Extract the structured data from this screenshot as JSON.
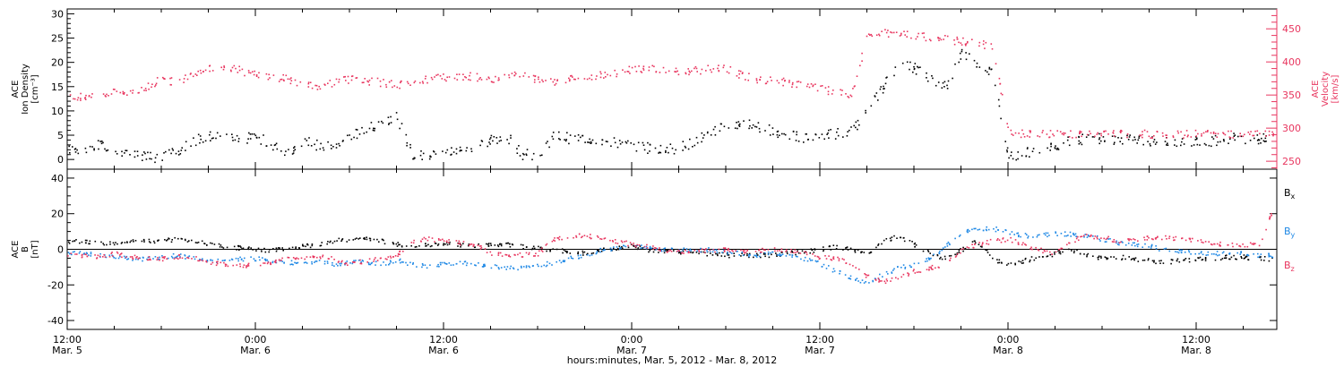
{
  "figure": {
    "xlabel": "hours:minutes, Mar.  5, 2012 - Mar.  8, 2012",
    "x_ticks": [
      {
        "time": "12:00",
        "date": "Mar. 5"
      },
      {
        "time": "0:00",
        "date": "Mar. 6"
      },
      {
        "time": "12:00",
        "date": "Mar. 6"
      },
      {
        "time": "0:00",
        "date": "Mar. 7"
      },
      {
        "time": "12:00",
        "date": "Mar. 7"
      },
      {
        "time": "0:00",
        "date": "Mar. 8"
      },
      {
        "time": "12:00",
        "date": "Mar. 8"
      }
    ],
    "colors": {
      "black": "#000000",
      "pink": "#e8365f",
      "blue": "#1e88e5"
    }
  },
  "chart_data": [
    {
      "type": "scatter",
      "panel": "ion-density-velocity",
      "xlim_hours": [
        0,
        78
      ],
      "ylabel_lines": [
        "ACE",
        "Ion Density",
        "[cm⁻³]"
      ],
      "ylim": [
        -2,
        31
      ],
      "yticks": [
        0,
        5,
        10,
        15,
        20,
        25,
        30
      ],
      "y2label_lines": [
        "ACE",
        "Velocity",
        "[km/s]"
      ],
      "y2lim": [
        238,
        480
      ],
      "y2ticks": [
        250,
        300,
        350,
        400,
        450
      ],
      "series": [
        {
          "color": "#000000",
          "axis": "left",
          "x": [
            0,
            1,
            2,
            3,
            4,
            5,
            6,
            7,
            8,
            9,
            10,
            11,
            12,
            13,
            14,
            15,
            16,
            17,
            18,
            19,
            20,
            21,
            22,
            23,
            24,
            25,
            26,
            27,
            28,
            29,
            30,
            31,
            32,
            33,
            34,
            35,
            36,
            37,
            38,
            39,
            40,
            41,
            42,
            43,
            44,
            45,
            46,
            47,
            48,
            49,
            50,
            51,
            52,
            53,
            54,
            55,
            56,
            57,
            58,
            59,
            60,
            61,
            62,
            63,
            64,
            65,
            66,
            67,
            68,
            69,
            70,
            71,
            72,
            73,
            74,
            75,
            76,
            77
          ],
          "y": [
            2,
            2.5,
            3,
            2,
            1.5,
            0.5,
            0.7,
            2,
            4,
            5,
            4.5,
            4,
            5,
            3,
            1.5,
            4,
            3,
            2.5,
            5,
            6,
            8,
            9,
            0.8,
            1,
            1.5,
            2,
            3,
            4,
            5,
            1.2,
            0.8,
            5,
            4.5,
            4.5,
            4,
            3.5,
            3,
            2.5,
            2.3,
            2.5,
            4,
            5.5,
            7,
            7.5,
            7,
            6,
            5,
            4.5,
            5,
            5.5,
            6,
            10,
            15,
            20,
            19,
            17,
            15,
            22,
            20,
            18,
            0.8,
            1.5,
            2,
            3,
            4,
            4.5,
            4.5,
            4.3,
            4,
            4,
            3.8,
            3.8,
            3.8,
            4,
            4.5,
            4.5,
            4.5,
            4.5
          ]
        },
        {
          "color": "#e8365f",
          "axis": "right",
          "x": [
            0,
            1,
            2,
            3,
            4,
            5,
            6,
            7,
            8,
            9,
            10,
            11,
            12,
            13,
            14,
            15,
            16,
            17,
            18,
            19,
            20,
            21,
            22,
            23,
            24,
            25,
            26,
            27,
            28,
            29,
            30,
            31,
            32,
            33,
            34,
            35,
            36,
            37,
            38,
            39,
            40,
            41,
            42,
            43,
            44,
            45,
            46,
            47,
            48,
            49,
            50,
            51,
            52,
            53,
            54,
            55,
            56,
            57,
            58,
            59,
            60,
            61,
            62,
            63,
            64,
            65,
            66,
            67,
            68,
            69,
            70,
            71,
            72,
            73,
            74,
            75,
            76,
            77
          ],
          "y": [
            345,
            348,
            350,
            358,
            352,
            362,
            375,
            370,
            385,
            392,
            395,
            388,
            382,
            378,
            375,
            368,
            365,
            370,
            375,
            372,
            370,
            365,
            372,
            375,
            378,
            380,
            378,
            375,
            380,
            380,
            375,
            372,
            375,
            378,
            382,
            385,
            390,
            392,
            388,
            385,
            388,
            390,
            392,
            380,
            375,
            372,
            370,
            365,
            360,
            355,
            350,
            440,
            445,
            443,
            440,
            438,
            435,
            432,
            428,
            425,
            295,
            292,
            292,
            292,
            292,
            292,
            292,
            292,
            292,
            292,
            292,
            292,
            292,
            292,
            292,
            292,
            292,
            292
          ]
        }
      ]
    },
    {
      "type": "scatter",
      "panel": "imf-components",
      "xlim_hours": [
        0,
        78
      ],
      "ylabel_lines": [
        "ACE",
        "B",
        "[nT]"
      ],
      "ylim": [
        -45,
        45
      ],
      "yticks": [
        -40,
        -20,
        0,
        20,
        40
      ],
      "legend": "right",
      "series": [
        {
          "name": "Bx",
          "color": "#000000",
          "x": [
            0,
            1,
            2,
            3,
            4,
            5,
            6,
            7,
            8,
            9,
            10,
            11,
            12,
            13,
            14,
            15,
            16,
            17,
            18,
            19,
            20,
            21,
            22,
            23,
            24,
            25,
            26,
            27,
            28,
            29,
            30,
            31,
            32,
            33,
            34,
            35,
            36,
            37,
            38,
            39,
            40,
            41,
            42,
            43,
            44,
            45,
            46,
            47,
            48,
            49,
            50,
            51,
            52,
            53,
            54,
            55,
            56,
            57,
            58,
            59,
            60,
            61,
            62,
            63,
            64,
            65,
            66,
            67,
            68,
            69,
            70,
            71,
            72,
            73,
            74,
            75,
            76,
            77
          ],
          "y": [
            4,
            5,
            4,
            4,
            5,
            5,
            5,
            6,
            5,
            3,
            2,
            1,
            0,
            0,
            1,
            2,
            3,
            5,
            6,
            7,
            5,
            3,
            2,
            3,
            4,
            3,
            2,
            3,
            3,
            2,
            1,
            0,
            -1,
            -2,
            0,
            1,
            2,
            0,
            -1,
            -1,
            -2,
            -2,
            -3,
            -3,
            -3,
            -3,
            -2,
            -1,
            0,
            2,
            0,
            -2,
            5,
            8,
            3,
            -2,
            -5,
            0,
            5,
            -5,
            -8,
            -6,
            -4,
            -2,
            0,
            -3,
            -5,
            -4,
            -5,
            -6,
            -7,
            -6,
            -5,
            -5,
            -4,
            -4,
            -5,
            -5
          ]
        },
        {
          "name": "By",
          "color": "#1e88e5",
          "x": [
            0,
            1,
            2,
            3,
            4,
            5,
            6,
            7,
            8,
            9,
            10,
            11,
            12,
            13,
            14,
            15,
            16,
            17,
            18,
            19,
            20,
            21,
            22,
            23,
            24,
            25,
            26,
            27,
            28,
            29,
            30,
            31,
            32,
            33,
            34,
            35,
            36,
            37,
            38,
            39,
            40,
            41,
            42,
            43,
            44,
            45,
            46,
            47,
            48,
            49,
            50,
            51,
            52,
            53,
            54,
            55,
            56,
            57,
            58,
            59,
            60,
            61,
            62,
            63,
            64,
            65,
            66,
            67,
            68,
            69,
            70,
            71,
            72,
            73,
            74,
            75,
            76,
            77
          ],
          "y": [
            -2,
            -2,
            -3,
            -4,
            -5,
            -5,
            -4,
            -3,
            -5,
            -6,
            -6,
            -5,
            -5,
            -6,
            -7,
            -7,
            -7,
            -8,
            -7,
            -7,
            -8,
            -6,
            -8,
            -9,
            -8,
            -7,
            -8,
            -9,
            -10,
            -10,
            -9,
            -7,
            -5,
            -3,
            0,
            1,
            2,
            1,
            0,
            0,
            0,
            0,
            -1,
            -2,
            -3,
            -2,
            -3,
            -5,
            -8,
            -12,
            -16,
            -18,
            -14,
            -10,
            -8,
            -5,
            2,
            10,
            12,
            12,
            10,
            8,
            8,
            9,
            9,
            8,
            6,
            4,
            3,
            2,
            0,
            -1,
            -2,
            -2,
            -2,
            -2,
            -3,
            -3
          ]
        },
        {
          "name": "Bz",
          "color": "#e8365f",
          "x": [
            0,
            1,
            2,
            3,
            4,
            5,
            6,
            7,
            8,
            9,
            10,
            11,
            12,
            13,
            14,
            15,
            16,
            17,
            18,
            19,
            20,
            21,
            22,
            23,
            24,
            25,
            26,
            27,
            28,
            29,
            30,
            31,
            32,
            33,
            34,
            35,
            36,
            37,
            38,
            39,
            40,
            41,
            42,
            43,
            44,
            45,
            46,
            47,
            48,
            49,
            50,
            51,
            52,
            53,
            54,
            55,
            56,
            57,
            58,
            59,
            60,
            61,
            62,
            63,
            64,
            65,
            66,
            67,
            68,
            69,
            70,
            71,
            72,
            73,
            74,
            75,
            76,
            77
          ],
          "y": [
            -3,
            -3,
            -4,
            -2,
            -4,
            -5,
            -5,
            -4,
            -4,
            -7,
            -8,
            -9,
            -8,
            -7,
            -5,
            -4,
            -4,
            -5,
            -8,
            -6,
            -5,
            -3,
            5,
            6,
            5,
            4,
            3,
            -2,
            -3,
            -3,
            -2,
            6,
            8,
            8,
            7,
            5,
            3,
            2,
            0,
            -1,
            -1,
            0,
            0,
            -1,
            0,
            0,
            0,
            -2,
            -4,
            -5,
            -8,
            -15,
            -18,
            -15,
            -12,
            -10,
            -8,
            0,
            3,
            5,
            6,
            3,
            0,
            -2,
            5,
            8,
            7,
            5,
            6,
            7,
            7,
            6,
            5,
            4,
            3,
            3,
            3,
            25
          ]
        }
      ]
    }
  ]
}
